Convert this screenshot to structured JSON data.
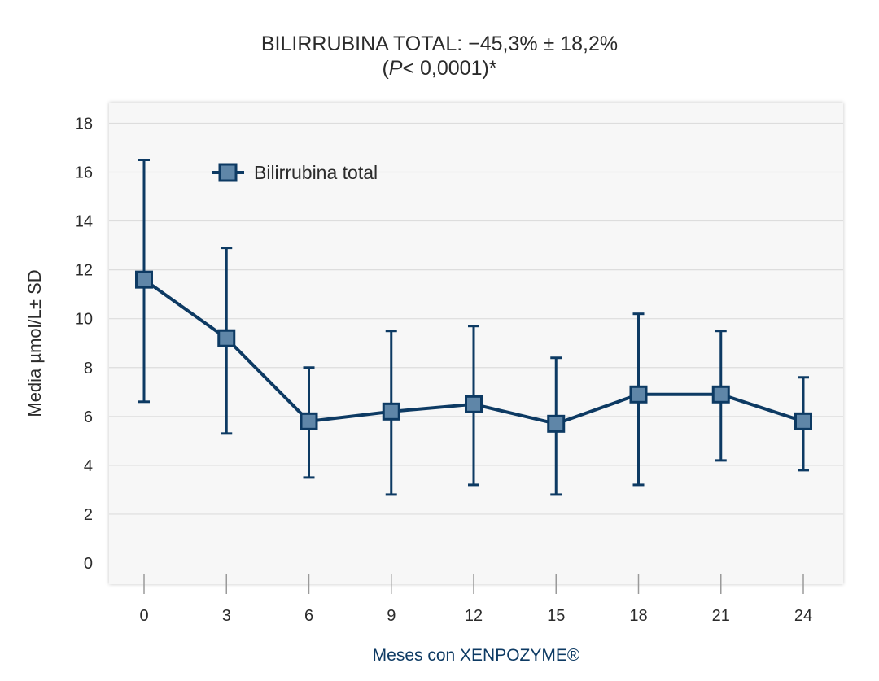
{
  "chart_data": {
    "type": "line",
    "title": "BILIRRUBINA TOTAL: −45,3% ± 18,2%",
    "subtitle_prefix": "(",
    "subtitle_italic": "P",
    "subtitle_rest": "< 0,0001)*",
    "xlabel": "Meses con XENPOZYME®",
    "ylabel": "Media µmol/L± SD",
    "x": [
      0,
      3,
      6,
      9,
      12,
      15,
      18,
      21,
      24
    ],
    "x_tick_labels": [
      "0",
      "3",
      "6",
      "9",
      "12",
      "15",
      "18",
      "21",
      "24"
    ],
    "y_ticks": [
      0,
      2,
      4,
      6,
      8,
      10,
      12,
      14,
      16,
      18
    ],
    "ylim": [
      0,
      18
    ],
    "grid": true,
    "legend_position": "top-left",
    "series": [
      {
        "name": "Bilirrubina total",
        "values": [
          11.6,
          9.2,
          5.8,
          6.2,
          6.5,
          5.7,
          6.9,
          6.9,
          5.8
        ],
        "error_upper": [
          16.5,
          12.9,
          8.0,
          9.5,
          9.7,
          8.4,
          10.2,
          9.5,
          7.6
        ],
        "error_lower": [
          6.6,
          5.3,
          3.5,
          2.8,
          3.2,
          2.8,
          3.2,
          4.2,
          3.8
        ],
        "line_color": "#0d3a63",
        "marker_fill": "#5f86a8"
      }
    ],
    "plot_background": "#f7f7f7",
    "grid_color": "#dddddd"
  }
}
